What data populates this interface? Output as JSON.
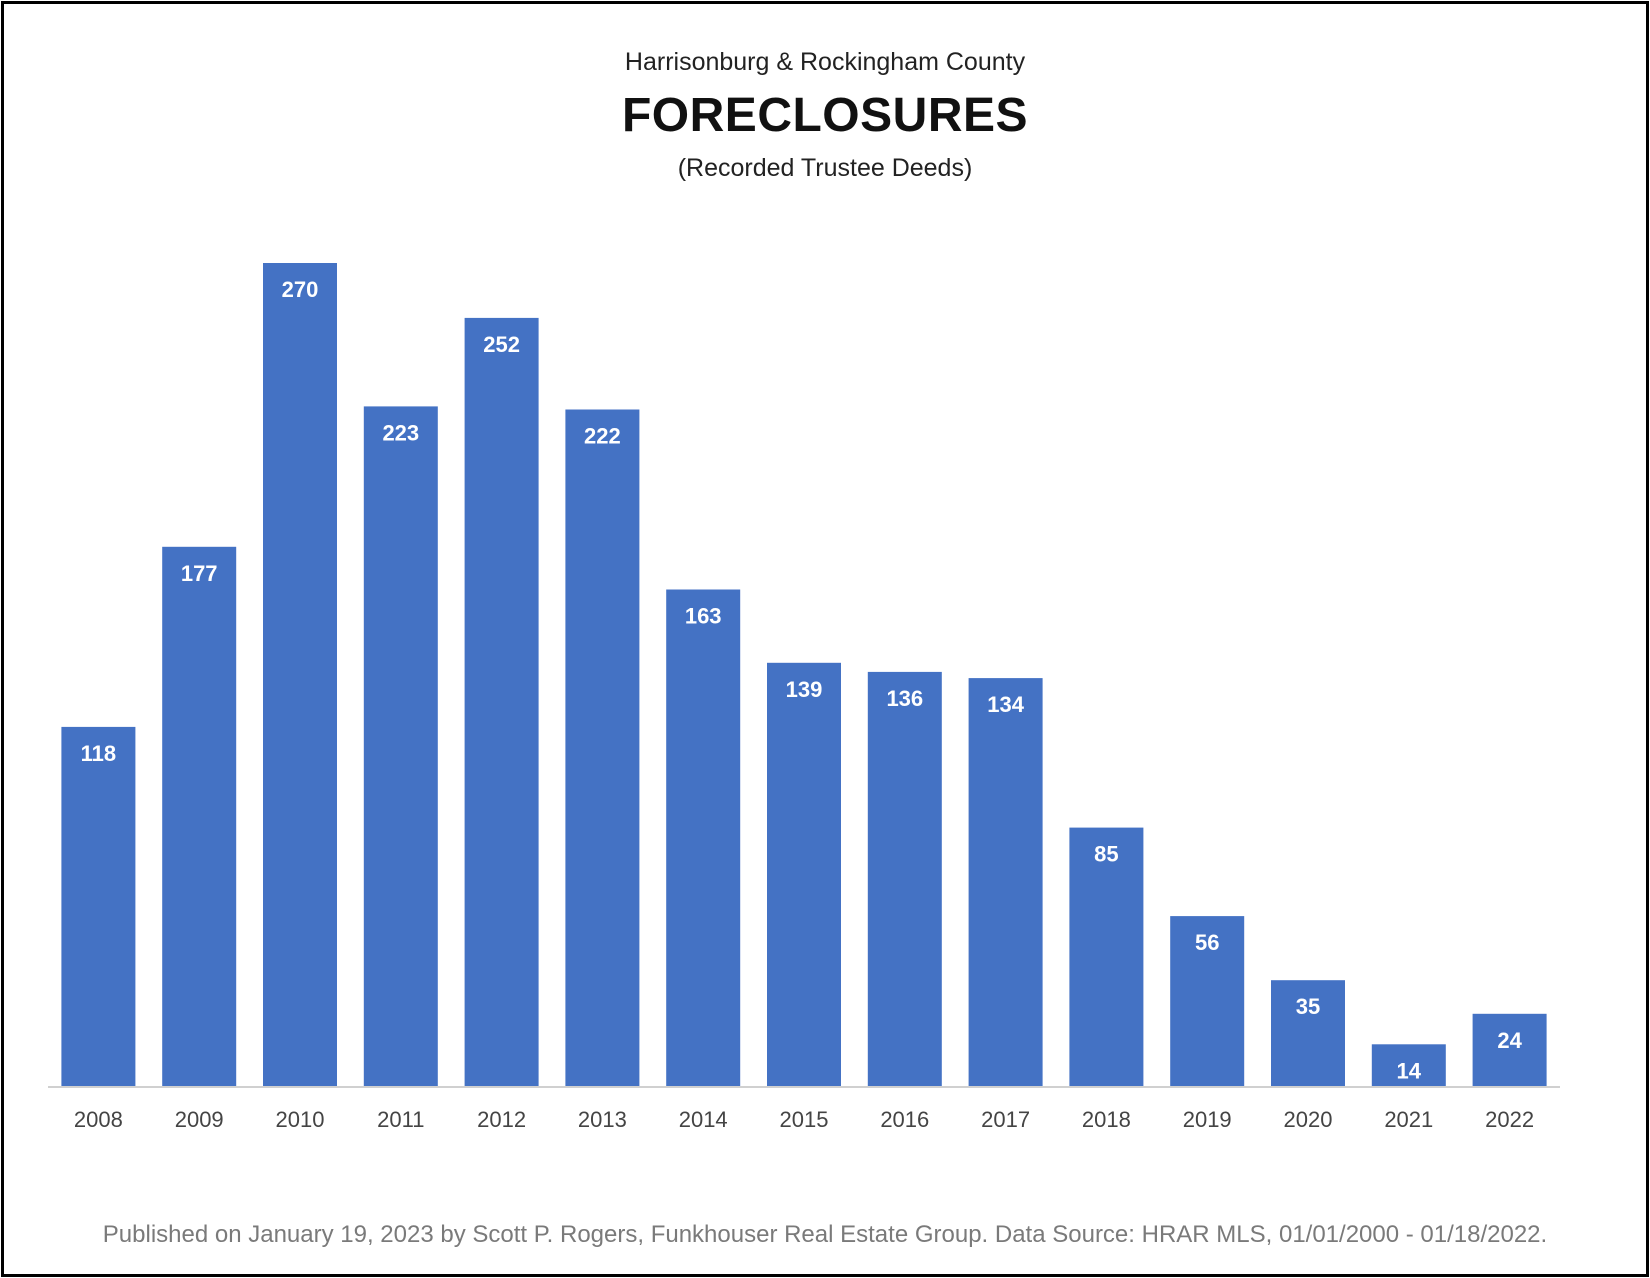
{
  "header": {
    "region": "Harrisonburg & Rockingham County",
    "title": "FORECLOSURES",
    "subtitle": "(Recorded Trustee Deeds)"
  },
  "footer": {
    "note": "Published on January 19, 2023 by Scott P. Rogers, Funkhouser Real Estate Group. Data Source: HRAR MLS, 01/01/2000 - 01/18/2022."
  },
  "chart_data": {
    "type": "bar",
    "title": "FORECLOSURES",
    "subtitle": "(Recorded Trustee Deeds)",
    "xlabel": "",
    "ylabel": "",
    "categories": [
      "2008",
      "2009",
      "2010",
      "2011",
      "2012",
      "2013",
      "2014",
      "2015",
      "2016",
      "2017",
      "2018",
      "2019",
      "2020",
      "2021",
      "2022"
    ],
    "values": [
      118,
      177,
      270,
      223,
      252,
      222,
      163,
      139,
      136,
      134,
      85,
      56,
      35,
      14,
      24
    ],
    "ylim": [
      0,
      270
    ],
    "grid": false,
    "legend": "none",
    "data_labels": "inside-end",
    "bar_color": "#4472c4",
    "label_color": "#ffffff"
  }
}
